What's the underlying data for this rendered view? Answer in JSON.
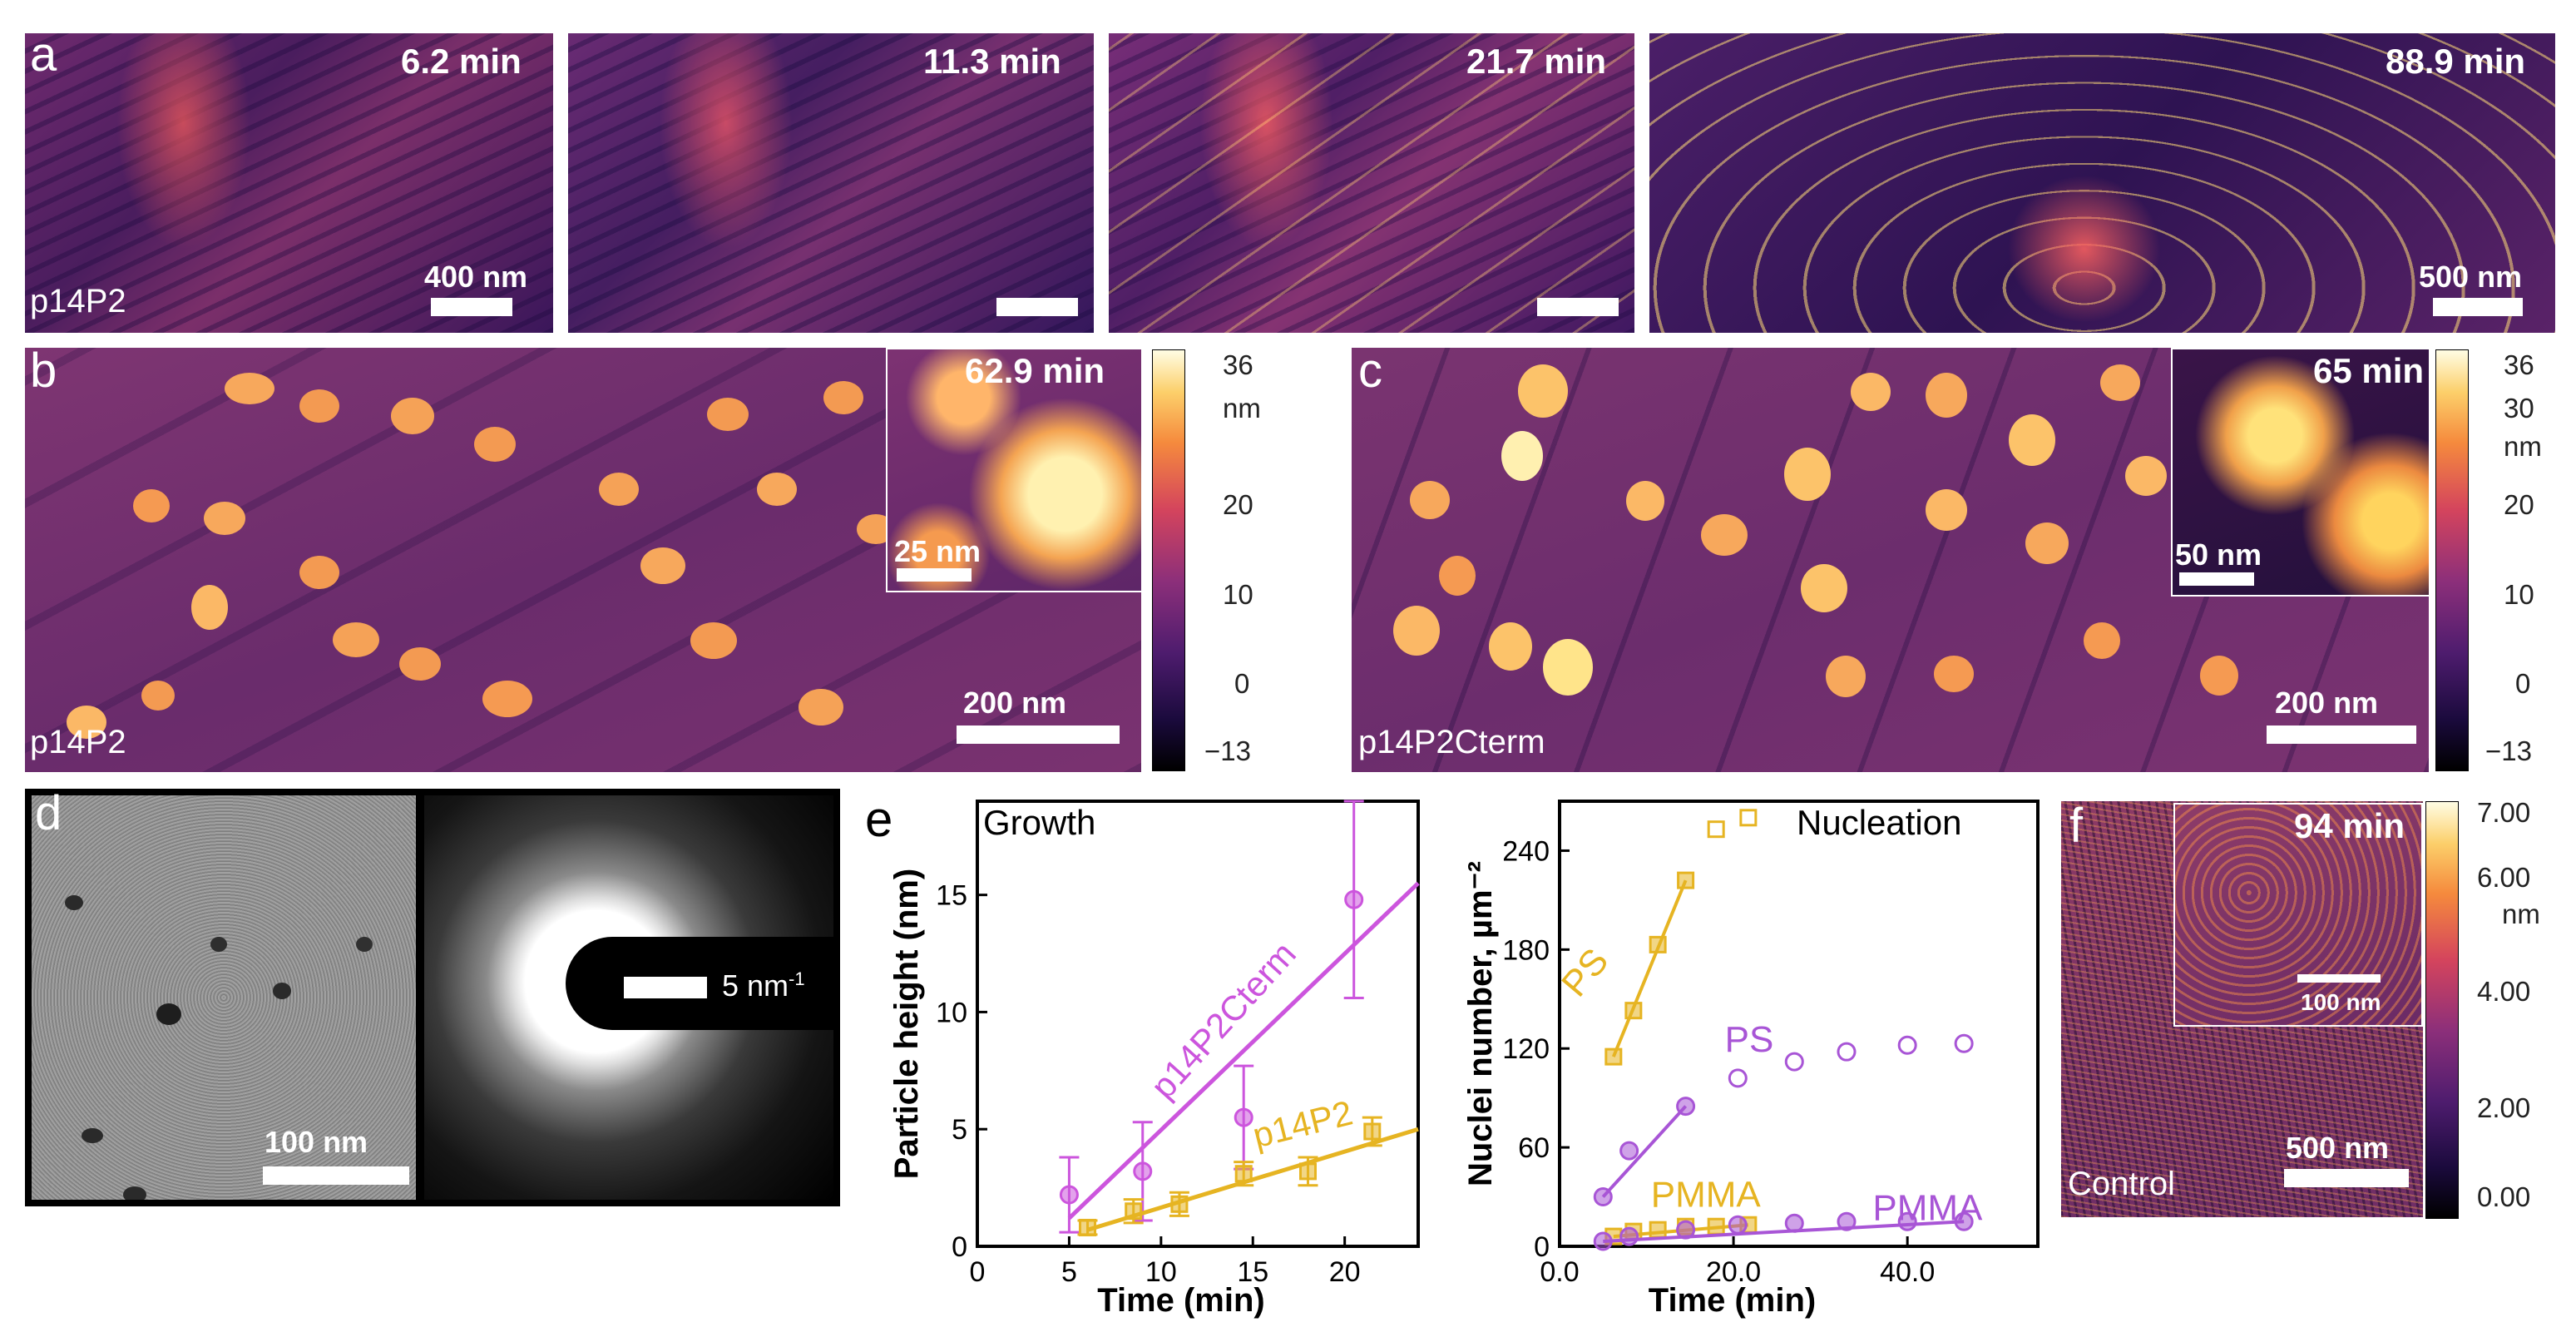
{
  "panel_a": {
    "letter": "a",
    "sample": "p14P2",
    "frames": [
      {
        "time": "6.2 min",
        "scale": "400 nm"
      },
      {
        "time": "11.3 min",
        "scale": ""
      },
      {
        "time": "21.7 min",
        "scale": ""
      },
      {
        "time": "88.9 min",
        "scale": "500 nm"
      }
    ]
  },
  "panel_b": {
    "letter": "b",
    "sample": "p14P2",
    "scale": "200 nm",
    "inset_time": "62.9 min",
    "inset_scale": "25 nm",
    "colorbar": {
      "unit": "nm",
      "ticks": [
        "36",
        "20",
        "10",
        "0",
        "−13"
      ]
    }
  },
  "panel_c": {
    "letter": "c",
    "sample": "p14P2Cterm",
    "scale": "200 nm",
    "inset_time": "65 min",
    "inset_scale": "50 nm",
    "colorbar": {
      "unit": "nm",
      "ticks": [
        "36",
        "30",
        "20",
        "10",
        "0",
        "−13"
      ]
    }
  },
  "panel_d": {
    "letter": "d",
    "scale": "100 nm",
    "diffraction_scale": "5 nm",
    "diffraction_scale_sup": "-1"
  },
  "panel_e": {
    "letter": "e",
    "growth_title": "Growth",
    "nucleation_title": "Nucleation"
  },
  "panel_f": {
    "letter": "f",
    "sample": "Control",
    "scale": "500 nm",
    "inset_time": "94 min",
    "inset_scale": "100 nm",
    "colorbar": {
      "unit": "nm",
      "ticks": [
        "7.00",
        "6.00",
        "4.00",
        "2.00",
        "0.00"
      ]
    }
  },
  "colors": {
    "magenta": "#cc55dd",
    "gold": "#e6b422",
    "purple": "#a855d6"
  },
  "chart_data": [
    {
      "type": "scatter",
      "title": "Growth",
      "xlabel": "Time (min)",
      "ylabel": "Particle height (nm)",
      "xlim": [
        0,
        24
      ],
      "ylim": [
        0,
        19
      ],
      "xticks": [
        "0",
        "5",
        "10",
        "15",
        "20"
      ],
      "yticks": [
        "0",
        "5",
        "10",
        "15"
      ],
      "series": [
        {
          "name": "p14P2Cterm",
          "marker": "circle",
          "color": "#cc55dd",
          "x": [
            5,
            9,
            14.5,
            20.5
          ],
          "y": [
            2.2,
            3.2,
            5.5,
            14.8
          ],
          "yerr": [
            1.6,
            2.1,
            2.2,
            4.2
          ],
          "fit": {
            "x": [
              5,
              24
            ],
            "y": [
              1.2,
              15.5
            ]
          }
        },
        {
          "name": "p14P2",
          "marker": "square",
          "color": "#e6b422",
          "x": [
            6,
            8.5,
            11,
            14.5,
            18,
            21.5
          ],
          "y": [
            0.8,
            1.5,
            1.8,
            3.1,
            3.2,
            4.9
          ],
          "yerr": [
            0.3,
            0.5,
            0.5,
            0.5,
            0.6,
            0.6
          ],
          "fit": {
            "x": [
              6,
              24
            ],
            "y": [
              0.7,
              5.0
            ]
          }
        }
      ]
    },
    {
      "type": "scatter",
      "title": "Nucleation",
      "xlabel": "Time (min)",
      "ylabel": "Nuclei number, µm⁻²",
      "xlim": [
        0,
        55
      ],
      "ylim": [
        0,
        270
      ],
      "xticks": [
        "0.0",
        "20.0",
        "40.0"
      ],
      "yticks": [
        "0",
        "60",
        "120",
        "180",
        "240"
      ],
      "series": [
        {
          "name": "PS (p14P2)",
          "label": "PS",
          "marker": "square",
          "color": "#e6b422",
          "x": [
            6.2,
            8.5,
            11.3,
            14.5,
            18,
            21.7
          ],
          "y": [
            115,
            143,
            183,
            222,
            253,
            260
          ],
          "filled": [
            true,
            true,
            true,
            true,
            false,
            false
          ]
        },
        {
          "name": "PS (p14P2Cterm)",
          "label": "PS",
          "marker": "circle",
          "color": "#a855d6",
          "x": [
            5,
            8,
            14.5,
            20.5,
            27,
            33,
            40,
            46.5
          ],
          "y": [
            30,
            58,
            85,
            102,
            112,
            118,
            122,
            123
          ],
          "filled": [
            true,
            true,
            true,
            false,
            false,
            false,
            false,
            false
          ]
        },
        {
          "name": "PMMA (p14P2)",
          "label": "PMMA",
          "marker": "square",
          "color": "#e6b422",
          "x": [
            6.2,
            8.5,
            11.3,
            14.5,
            18,
            21.7
          ],
          "y": [
            6,
            9,
            10,
            12,
            12,
            13
          ]
        },
        {
          "name": "PMMA (p14P2Cterm)",
          "label": "PMMA",
          "marker": "circle",
          "color": "#a855d6",
          "x": [
            5,
            8,
            14.5,
            20.5,
            27,
            33,
            40,
            46.5
          ],
          "y": [
            3,
            6,
            10,
            13,
            14,
            15,
            15,
            15
          ]
        }
      ]
    }
  ]
}
